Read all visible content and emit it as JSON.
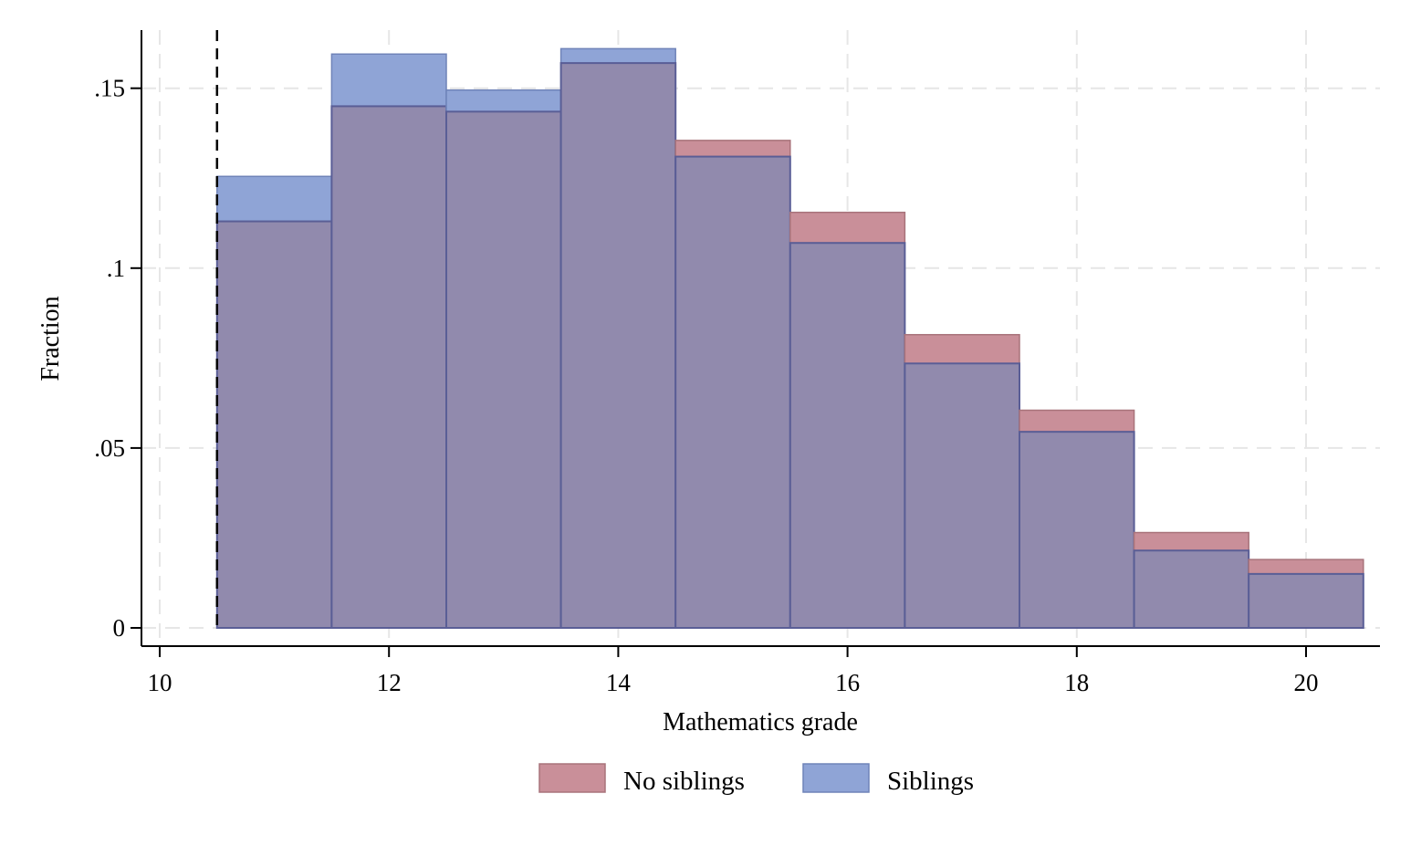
{
  "chart_data": {
    "type": "bar",
    "subtype": "overlaid-histogram",
    "title": "",
    "xlabel": "Mathematics grade",
    "ylabel": "Fraction",
    "xlim": [
      10,
      20.6
    ],
    "ylim": [
      0,
      0.166
    ],
    "x_ticks": [
      10,
      12,
      14,
      16,
      18,
      20
    ],
    "x_tick_labels": [
      "10",
      "12",
      "14",
      "16",
      "18",
      "20"
    ],
    "y_ticks": [
      0,
      0.05,
      0.1,
      0.15
    ],
    "y_tick_labels": [
      "0",
      ".05",
      ".1",
      ".15"
    ],
    "grid": true,
    "bin_width": 1,
    "bin_centers": [
      11,
      12,
      13,
      14,
      15,
      16,
      17,
      18,
      19,
      20
    ],
    "reference_line": {
      "x": 10.5,
      "style": "dashed"
    },
    "legend_position": "bottom",
    "series": [
      {
        "name": "No siblings",
        "color": "#c98f99",
        "values": [
          0.113,
          0.145,
          0.1435,
          0.157,
          0.1355,
          0.1155,
          0.0815,
          0.0605,
          0.0265,
          0.019
        ]
      },
      {
        "name": "Siblings",
        "color": "#8fa4d6",
        "values": [
          0.1255,
          0.1595,
          0.1495,
          0.161,
          0.131,
          0.107,
          0.0735,
          0.0545,
          0.0215,
          0.015
        ]
      }
    ],
    "overlap_color": "#918aad"
  }
}
